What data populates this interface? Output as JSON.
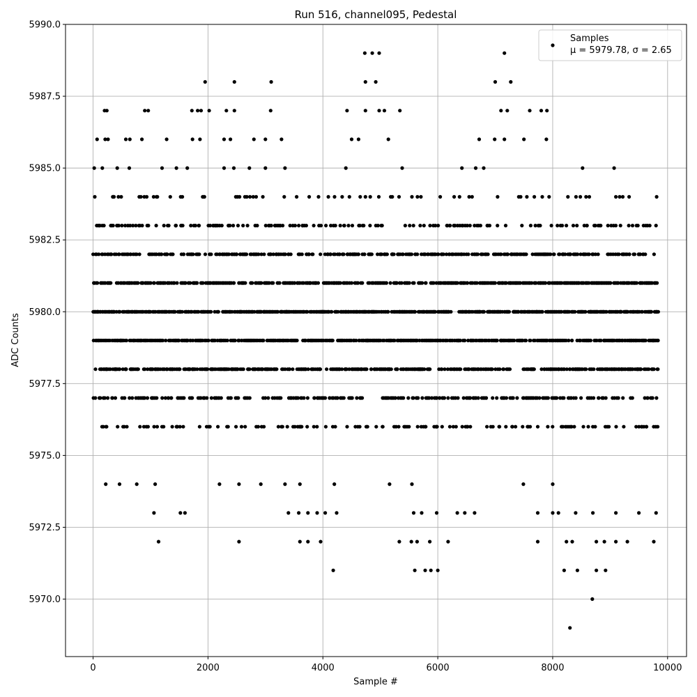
{
  "chart_data": {
    "type": "scatter",
    "title": "Run 516, channel095, Pedestal",
    "xlabel": "Sample #",
    "ylabel": "ADC Counts",
    "xlim": [
      -480,
      10330
    ],
    "ylim": [
      5968,
      5990
    ],
    "xticks": [
      0,
      2000,
      4000,
      6000,
      8000,
      10000
    ],
    "yticks": [
      5970.0,
      5972.5,
      5975.0,
      5977.5,
      5980.0,
      5982.5,
      5985.0,
      5987.5,
      5990.0
    ],
    "xtick_labels": [
      "0",
      "2000",
      "4000",
      "6000",
      "8000",
      "10000"
    ],
    "ytick_labels": [
      "5970.0",
      "5972.5",
      "5975.0",
      "5977.5",
      "5980.0",
      "5982.5",
      "5985.0",
      "5987.5",
      "5990.0"
    ],
    "grid": true,
    "legend_position": "top-right",
    "marker_color": "#000000",
    "n_samples": 9840,
    "series": [
      {
        "name": "Samples",
        "legend_line2": "μ = 5979.78, σ = 2.65",
        "mean": 5979.78,
        "sigma": 2.65,
        "outliers": [
          [
            4730,
            5989
          ],
          [
            4860,
            5989
          ],
          [
            4980,
            5989
          ],
          [
            7160,
            5989
          ],
          [
            1950,
            5988
          ],
          [
            2460,
            5988
          ],
          [
            3100,
            5988
          ],
          [
            4740,
            5988
          ],
          [
            4920,
            5988
          ],
          [
            7000,
            5988
          ],
          [
            7270,
            5988
          ],
          [
            200,
            5987
          ],
          [
            240,
            5987
          ],
          [
            900,
            5987
          ],
          [
            960,
            5987
          ],
          [
            1720,
            5987
          ],
          [
            1820,
            5987
          ],
          [
            1880,
            5987
          ],
          [
            2020,
            5987
          ],
          [
            2320,
            5987
          ],
          [
            2460,
            5987
          ],
          [
            3090,
            5987
          ],
          [
            4420,
            5987
          ],
          [
            4740,
            5987
          ],
          [
            4980,
            5987
          ],
          [
            5070,
            5987
          ],
          [
            5340,
            5987
          ],
          [
            7100,
            5987
          ],
          [
            7210,
            5987
          ],
          [
            7600,
            5987
          ],
          [
            7800,
            5987
          ],
          [
            7900,
            5987
          ],
          [
            70,
            5986
          ],
          [
            210,
            5986
          ],
          [
            260,
            5986
          ],
          [
            570,
            5986
          ],
          [
            640,
            5986
          ],
          [
            850,
            5986
          ],
          [
            1280,
            5986
          ],
          [
            1730,
            5986
          ],
          [
            1860,
            5986
          ],
          [
            2280,
            5986
          ],
          [
            2390,
            5986
          ],
          [
            2800,
            5986
          ],
          [
            3000,
            5986
          ],
          [
            3280,
            5986
          ],
          [
            4500,
            5986
          ],
          [
            4620,
            5986
          ],
          [
            5140,
            5986
          ],
          [
            6720,
            5986
          ],
          [
            6990,
            5986
          ],
          [
            7160,
            5986
          ],
          [
            7500,
            5986
          ],
          [
            7890,
            5986
          ],
          [
            20,
            5985
          ],
          [
            160,
            5985
          ],
          [
            420,
            5985
          ],
          [
            630,
            5985
          ],
          [
            1200,
            5985
          ],
          [
            1450,
            5985
          ],
          [
            1640,
            5985
          ],
          [
            2280,
            5985
          ],
          [
            2450,
            5985
          ],
          [
            2720,
            5985
          ],
          [
            3000,
            5985
          ],
          [
            3340,
            5985
          ],
          [
            4400,
            5985
          ],
          [
            5380,
            5985
          ],
          [
            6420,
            5985
          ],
          [
            6660,
            5985
          ],
          [
            6800,
            5985
          ],
          [
            8520,
            5985
          ],
          [
            9070,
            5985
          ],
          [
            8580,
            5984
          ],
          [
            9100,
            5984
          ],
          [
            9220,
            5984
          ],
          [
            9330,
            5984
          ],
          [
            9810,
            5984
          ],
          [
            220,
            5974
          ],
          [
            460,
            5974
          ],
          [
            760,
            5974
          ],
          [
            1080,
            5974
          ],
          [
            2200,
            5974
          ],
          [
            2540,
            5974
          ],
          [
            2920,
            5974
          ],
          [
            3340,
            5974
          ],
          [
            3600,
            5974
          ],
          [
            4200,
            5974
          ],
          [
            5160,
            5974
          ],
          [
            5550,
            5974
          ],
          [
            7490,
            5974
          ],
          [
            8000,
            5974
          ],
          [
            1060,
            5973
          ],
          [
            1520,
            5973
          ],
          [
            1600,
            5973
          ],
          [
            3400,
            5973
          ],
          [
            3580,
            5973
          ],
          [
            3740,
            5973
          ],
          [
            3900,
            5973
          ],
          [
            4040,
            5973
          ],
          [
            4240,
            5973
          ],
          [
            5580,
            5973
          ],
          [
            5720,
            5973
          ],
          [
            5980,
            5973
          ],
          [
            6340,
            5973
          ],
          [
            6470,
            5973
          ],
          [
            6640,
            5973
          ],
          [
            7740,
            5973
          ],
          [
            8000,
            5973
          ],
          [
            8100,
            5973
          ],
          [
            8400,
            5973
          ],
          [
            8700,
            5973
          ],
          [
            9100,
            5973
          ],
          [
            9500,
            5973
          ],
          [
            9800,
            5973
          ],
          [
            1140,
            5972
          ],
          [
            2540,
            5972
          ],
          [
            3600,
            5972
          ],
          [
            3740,
            5972
          ],
          [
            3960,
            5972
          ],
          [
            5330,
            5972
          ],
          [
            5540,
            5972
          ],
          [
            5640,
            5972
          ],
          [
            5860,
            5972
          ],
          [
            6180,
            5972
          ],
          [
            7740,
            5972
          ],
          [
            8240,
            5972
          ],
          [
            8340,
            5972
          ],
          [
            8760,
            5972
          ],
          [
            8900,
            5972
          ],
          [
            9100,
            5972
          ],
          [
            9300,
            5972
          ],
          [
            9760,
            5972
          ],
          [
            4180,
            5971
          ],
          [
            5600,
            5971
          ],
          [
            5780,
            5971
          ],
          [
            5880,
            5971
          ],
          [
            6000,
            5971
          ],
          [
            8200,
            5971
          ],
          [
            8430,
            5971
          ],
          [
            8760,
            5971
          ],
          [
            8920,
            5971
          ],
          [
            8690,
            5970
          ],
          [
            8300,
            5969
          ]
        ]
      }
    ]
  }
}
